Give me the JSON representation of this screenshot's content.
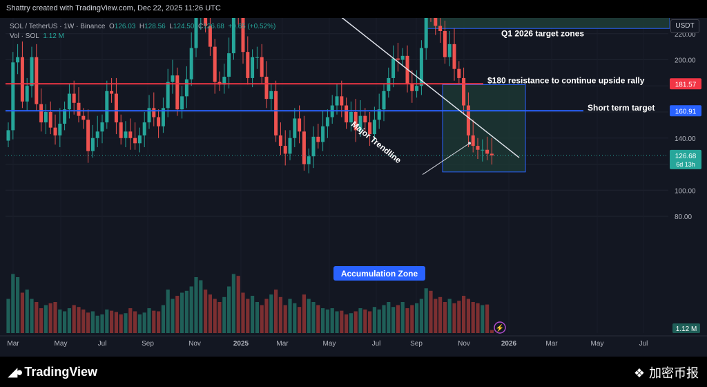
{
  "header": {
    "attribution": "Shattry created with TradingView.com, Dec 22, 2025 11:26 UTC"
  },
  "legend": {
    "symbol": "SOL / TetherUS · 1W · Binance",
    "o_label": "O",
    "o": "126.03",
    "h_label": "H",
    "h": "128.56",
    "l_label": "L",
    "l": "124.50",
    "c_label": "C",
    "c": "126.68",
    "change": "+0.65 (+0.52%)",
    "vol_label": "Vol · SOL",
    "vol": "1.12 M"
  },
  "currency_button": "USDT",
  "price_badges": {
    "resistance": "181.57",
    "target": "160.91",
    "last": "126.68",
    "countdown": "6d 13h",
    "volume": "1.12 M"
  },
  "annotations": {
    "trendline": "Major Trendline",
    "q1_zone": "Q1 2026 target zones",
    "resistance": "$180 resistance to continue upside rally",
    "short_target": "Short term target",
    "accumulation": "Accumulation Zone"
  },
  "footer": {
    "tv_brand": "TradingView",
    "binance_brand": "加密币报"
  },
  "colors": {
    "up": "#26a69a",
    "down": "#ef5350",
    "resistance_line": "#f23645",
    "target_line": "#2962ff",
    "zone_fill": "#1e3b36"
  },
  "chart_data": {
    "type": "candlestick",
    "timeframe": "1W",
    "y_axis": {
      "ticks": [
        80,
        100,
        120,
        140,
        160,
        180,
        200,
        220,
        240,
        260,
        280
      ],
      "range": [
        70,
        295
      ]
    },
    "x_axis": {
      "labels": [
        "Mar",
        "May",
        "Jul",
        "Sep",
        "Nov",
        "2025",
        "Mar",
        "May",
        "Jul",
        "Sep",
        "Nov",
        "2026",
        "Mar",
        "May",
        "Jul"
      ]
    },
    "horizontal_levels": [
      {
        "label": "resistance",
        "value": 181.57
      },
      {
        "label": "target",
        "value": 160.91
      }
    ],
    "closes": [
      146,
      198,
      202,
      168,
      180,
      202,
      166,
      152,
      160,
      148,
      142,
      151,
      162,
      174,
      167,
      157,
      154,
      130,
      140,
      145,
      152,
      176,
      174,
      152,
      140,
      145,
      140,
      136,
      142,
      152,
      163,
      156,
      149,
      163,
      183,
      188,
      162,
      172,
      185,
      209,
      232,
      245,
      226,
      210,
      183,
      181,
      187,
      205,
      248,
      234,
      206,
      186,
      202,
      202,
      187,
      170,
      176,
      142,
      134,
      128,
      140,
      155,
      145,
      120,
      126,
      141,
      137,
      149,
      156,
      165,
      172,
      165,
      152,
      160,
      146,
      157,
      152,
      143,
      154,
      162,
      176,
      186,
      201,
      200,
      203,
      182,
      176,
      180,
      209,
      238,
      234,
      226,
      222,
      202,
      212,
      193,
      186,
      165,
      142,
      134,
      131,
      131,
      128,
      126.68
    ],
    "volumes": [
      0.55,
      0.95,
      0.9,
      0.65,
      0.7,
      0.55,
      0.5,
      0.4,
      0.45,
      0.48,
      0.5,
      0.38,
      0.35,
      0.4,
      0.45,
      0.42,
      0.38,
      0.33,
      0.35,
      0.28,
      0.3,
      0.38,
      0.36,
      0.34,
      0.3,
      0.32,
      0.4,
      0.35,
      0.3,
      0.33,
      0.4,
      0.36,
      0.35,
      0.45,
      0.7,
      0.55,
      0.6,
      0.65,
      0.68,
      0.75,
      0.9,
      0.85,
      0.7,
      0.62,
      0.55,
      0.5,
      0.58,
      0.75,
      0.95,
      0.92,
      0.65,
      0.55,
      0.6,
      0.5,
      0.45,
      0.55,
      0.62,
      0.7,
      0.58,
      0.45,
      0.55,
      0.48,
      0.42,
      0.62,
      0.55,
      0.5,
      0.45,
      0.4,
      0.38,
      0.4,
      0.35,
      0.36,
      0.3,
      0.32,
      0.35,
      0.4,
      0.38,
      0.35,
      0.42,
      0.38,
      0.45,
      0.5,
      0.42,
      0.45,
      0.5,
      0.4,
      0.45,
      0.48,
      0.55,
      0.72,
      0.68,
      0.55,
      0.58,
      0.5,
      0.55,
      0.48,
      0.52,
      0.6,
      0.55,
      0.5,
      0.48,
      0.45,
      0.46,
      0.05
    ]
  }
}
